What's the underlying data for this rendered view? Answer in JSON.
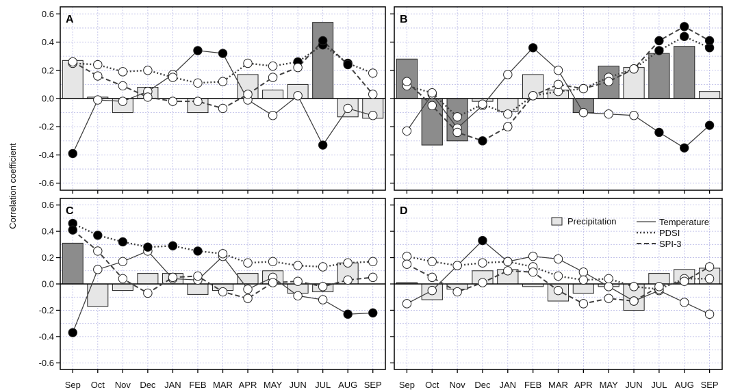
{
  "chart_data": {
    "type": "bar",
    "ylabel": "Correlation coefficient",
    "ylim": [
      -0.65,
      0.65
    ],
    "yticks": [
      "-0.6",
      "-0.4",
      "-0.2",
      "0.0",
      "0.2",
      "0.4",
      "0.6"
    ],
    "ytick_values": [
      -0.6,
      -0.4,
      -0.2,
      0.0,
      0.2,
      0.4,
      0.6
    ],
    "categories": [
      "Sep",
      "Oct",
      "Nov",
      "Dec",
      "JAN",
      "FEB",
      "MAR",
      "APR",
      "MAY",
      "JUN",
      "JUL",
      "AUG",
      "SEP"
    ],
    "grid": true,
    "legend": {
      "placement": "top-right of panel D",
      "precipitation": "Precipitation",
      "temperature": "Temperature",
      "pdsi": "PDSI",
      "spi3": "SPI-3"
    },
    "colors": {
      "significant": "#8c8c8c",
      "nonsignificant": "#e6e6e6",
      "grid": "#b9b9e6",
      "line": "#404040"
    },
    "panels": [
      {
        "label": "A",
        "precipitation": [
          0.27,
          0.01,
          -0.1,
          0.08,
          0.0,
          -0.1,
          0.0,
          0.17,
          0.06,
          0.1,
          0.54,
          -0.13,
          -0.14
        ],
        "precipitation_significant": [
          false,
          false,
          false,
          false,
          false,
          false,
          false,
          false,
          false,
          false,
          true,
          false,
          false
        ],
        "temperature": [
          -0.39,
          -0.01,
          -0.02,
          0.05,
          0.17,
          0.34,
          0.32,
          -0.01,
          -0.12,
          0.02,
          -0.33,
          -0.07,
          -0.12
        ],
        "temperature_significant": [
          true,
          false,
          false,
          false,
          false,
          true,
          true,
          false,
          false,
          false,
          true,
          false,
          false
        ],
        "pdsi": [
          0.25,
          0.24,
          0.19,
          0.2,
          0.15,
          0.11,
          0.12,
          0.25,
          0.23,
          0.26,
          0.38,
          0.25,
          0.18
        ],
        "pdsi_significant": [
          false,
          false,
          false,
          false,
          false,
          false,
          false,
          false,
          false,
          true,
          true,
          true,
          false
        ],
        "spi3": [
          0.26,
          0.16,
          0.09,
          0.01,
          -0.02,
          -0.02,
          -0.07,
          0.03,
          0.15,
          0.22,
          0.41,
          0.24,
          0.03
        ],
        "spi3_significant": [
          false,
          false,
          false,
          false,
          false,
          false,
          false,
          false,
          false,
          false,
          true,
          true,
          false
        ]
      },
      {
        "label": "B",
        "precipitation": [
          0.28,
          -0.33,
          -0.3,
          -0.02,
          -0.09,
          0.17,
          0.06,
          -0.1,
          0.23,
          0.22,
          0.32,
          0.37,
          0.05
        ],
        "precipitation_significant": [
          true,
          true,
          true,
          false,
          false,
          false,
          false,
          true,
          true,
          false,
          true,
          true,
          false
        ],
        "temperature": [
          -0.23,
          0.03,
          -0.21,
          -0.05,
          0.17,
          0.36,
          0.2,
          -0.1,
          -0.11,
          -0.12,
          -0.24,
          -0.35,
          -0.19
        ],
        "temperature_significant": [
          false,
          false,
          false,
          false,
          false,
          true,
          false,
          false,
          false,
          false,
          true,
          true,
          true
        ],
        "pdsi": [
          0.09,
          0.04,
          -0.13,
          -0.04,
          -0.11,
          0.02,
          0.05,
          0.07,
          0.15,
          0.21,
          0.34,
          0.44,
          0.36
        ],
        "pdsi_significant": [
          false,
          false,
          false,
          false,
          false,
          false,
          false,
          false,
          false,
          false,
          true,
          true,
          true
        ],
        "spi3": [
          0.12,
          -0.05,
          -0.24,
          -0.3,
          -0.2,
          0.02,
          0.1,
          0.07,
          0.12,
          0.21,
          0.41,
          0.51,
          0.41
        ],
        "spi3_significant": [
          false,
          false,
          false,
          true,
          false,
          false,
          false,
          false,
          false,
          false,
          true,
          true,
          true
        ]
      },
      {
        "label": "C",
        "precipitation": [
          0.31,
          -0.17,
          -0.05,
          0.08,
          0.08,
          -0.08,
          -0.05,
          0.08,
          0.1,
          -0.07,
          -0.06,
          0.16,
          0.0
        ],
        "precipitation_significant": [
          true,
          false,
          false,
          false,
          false,
          false,
          false,
          false,
          false,
          false,
          false,
          false,
          false
        ],
        "temperature": [
          -0.37,
          0.11,
          0.17,
          0.25,
          0.04,
          0.03,
          0.21,
          -0.04,
          0.05,
          -0.09,
          -0.12,
          -0.23,
          -0.22
        ],
        "temperature_significant": [
          true,
          false,
          false,
          false,
          false,
          false,
          false,
          false,
          false,
          false,
          false,
          true,
          true
        ],
        "pdsi": [
          0.46,
          0.37,
          0.32,
          0.28,
          0.29,
          0.25,
          0.23,
          0.16,
          0.17,
          0.14,
          0.13,
          0.16,
          0.17
        ],
        "pdsi_significant": [
          true,
          true,
          true,
          true,
          true,
          true,
          false,
          false,
          false,
          false,
          false,
          false,
          false
        ],
        "spi3": [
          0.41,
          0.25,
          0.04,
          -0.07,
          0.05,
          0.06,
          -0.06,
          -0.11,
          0.01,
          0.02,
          -0.02,
          0.03,
          0.05
        ],
        "spi3_significant": [
          true,
          false,
          false,
          false,
          false,
          false,
          false,
          false,
          false,
          false,
          false,
          false,
          false
        ]
      },
      {
        "label": "D",
        "precipitation": [
          0.01,
          -0.12,
          -0.04,
          0.1,
          0.11,
          -0.02,
          -0.13,
          -0.07,
          -0.02,
          -0.2,
          0.08,
          0.11,
          0.12
        ],
        "precipitation_significant": [
          true,
          false,
          false,
          false,
          false,
          false,
          false,
          false,
          false,
          false,
          false,
          false,
          false
        ],
        "temperature": [
          -0.15,
          -0.05,
          0.14,
          0.33,
          0.17,
          0.21,
          0.19,
          0.09,
          -0.02,
          -0.13,
          -0.05,
          -0.14,
          -0.23
        ],
        "temperature_significant": [
          false,
          false,
          false,
          true,
          false,
          false,
          false,
          false,
          false,
          false,
          false,
          false,
          false
        ],
        "pdsi": [
          0.21,
          0.17,
          0.14,
          0.16,
          0.17,
          0.13,
          0.06,
          0.03,
          0.04,
          -0.02,
          -0.04,
          0.04,
          0.04
        ],
        "pdsi_significant": [
          false,
          false,
          false,
          false,
          false,
          false,
          false,
          false,
          false,
          false,
          false,
          false,
          false
        ],
        "spi3": [
          0.15,
          0.05,
          -0.06,
          0.01,
          0.1,
          0.09,
          -0.05,
          -0.15,
          -0.11,
          -0.13,
          -0.02,
          0.02,
          0.13
        ],
        "spi3_significant": [
          false,
          false,
          false,
          false,
          false,
          false,
          false,
          false,
          false,
          false,
          false,
          false,
          false
        ]
      }
    ]
  }
}
